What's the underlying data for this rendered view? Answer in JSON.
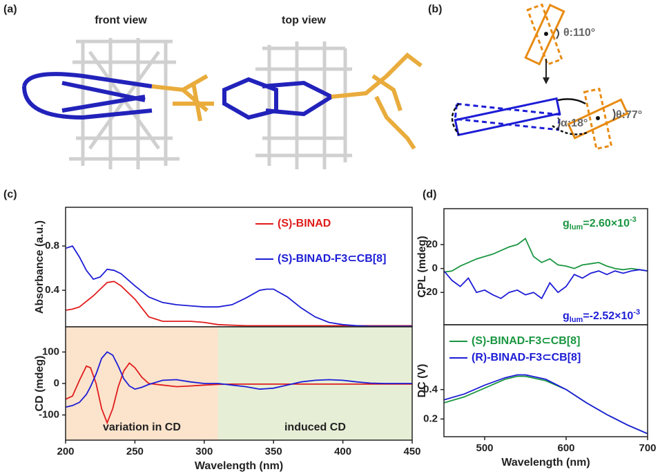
{
  "figure": {
    "panels": [
      {
        "label": "(a)",
        "texts": [
          "front view",
          "top view"
        ]
      },
      {
        "label": "(b)",
        "texts": [
          "θ:110°",
          "α:18°",
          "θ:77°"
        ]
      }
    ]
  },
  "chart_data": [
    {
      "type": "line",
      "panel_label": "(c)",
      "ylabel": "Absorbance (a.u.)",
      "x": [
        200,
        205,
        210,
        215,
        220,
        225,
        230,
        235,
        240,
        250,
        260,
        270,
        280,
        290,
        300,
        310,
        320,
        330,
        340,
        345,
        350,
        360,
        370,
        380,
        390,
        400,
        410,
        420,
        430,
        440,
        450
      ],
      "xlim": [
        200,
        450
      ],
      "ylim": [
        0.07,
        1.15
      ],
      "yticks": [
        0.4,
        0.8
      ],
      "legend": "upper right",
      "series": [
        {
          "name": "(S)-BINAD",
          "color": "#e01b1b",
          "values": [
            0.22,
            0.23,
            0.25,
            0.3,
            0.35,
            0.41,
            0.47,
            0.48,
            0.44,
            0.32,
            0.16,
            0.12,
            0.12,
            0.12,
            0.11,
            0.09,
            0.085,
            0.08,
            0.08,
            0.08,
            0.08,
            0.08,
            0.08,
            0.08,
            0.08,
            0.08,
            0.08,
            0.08,
            0.08,
            0.08,
            0.08
          ]
        },
        {
          "name": "(S)-BINAD-F3⊂CB[8]",
          "color": "#1c1cd6",
          "values": [
            0.78,
            0.8,
            0.7,
            0.58,
            0.5,
            0.52,
            0.59,
            0.58,
            0.55,
            0.44,
            0.34,
            0.29,
            0.27,
            0.26,
            0.25,
            0.25,
            0.27,
            0.33,
            0.4,
            0.41,
            0.41,
            0.34,
            0.24,
            0.16,
            0.11,
            0.09,
            0.08,
            0.075,
            0.075,
            0.075,
            0.075
          ]
        }
      ]
    },
    {
      "type": "line",
      "ylabel": "CD (mdeg)",
      "xlabel": "Wavelength (nm)",
      "x": [
        200,
        205,
        210,
        215,
        218,
        222,
        226,
        230,
        234,
        238,
        242,
        246,
        250,
        255,
        260,
        270,
        280,
        290,
        300,
        310,
        320,
        330,
        340,
        350,
        360,
        370,
        380,
        390,
        400,
        410,
        420,
        430,
        440,
        450
      ],
      "xlim": [
        200,
        450
      ],
      "ylim": [
        -180,
        180
      ],
      "xticks": [
        200,
        250,
        300,
        350,
        400,
        450
      ],
      "yticks": [
        -100,
        0,
        100
      ],
      "shaded_regions": [
        {
          "xlim": [
            200,
            310
          ],
          "color": "#fbe3cc",
          "label": "variation in CD"
        },
        {
          "xlim": [
            310,
            450
          ],
          "color": "#e6efd6",
          "label": "induced CD"
        }
      ],
      "series": [
        {
          "name": "(S)-BINAD",
          "color": "#e01b1b",
          "values": [
            -50,
            -40,
            10,
            55,
            50,
            0,
            -80,
            -125,
            -80,
            -10,
            40,
            65,
            50,
            20,
            0,
            -5,
            -10,
            -8,
            -5,
            -3,
            -2,
            -2,
            -2,
            -2,
            -2,
            -2,
            -2,
            -2,
            -2,
            -2,
            -2,
            -2,
            -2,
            -2
          ]
        },
        {
          "name": "(S)-BINAD-F3⊂CB[8]",
          "color": "#1c1cd6",
          "values": [
            -75,
            -70,
            -60,
            -35,
            -10,
            30,
            80,
            100,
            90,
            55,
            15,
            -8,
            -18,
            -12,
            -3,
            10,
            12,
            5,
            0,
            0,
            -5,
            -10,
            -18,
            -15,
            -5,
            5,
            10,
            12,
            10,
            5,
            1,
            0,
            0,
            0
          ]
        }
      ]
    },
    {
      "type": "line",
      "panel_label": "(d)",
      "ylabel": "CPL (mdeg)",
      "x": [
        450,
        460,
        470,
        480,
        490,
        500,
        510,
        520,
        530,
        540,
        550,
        560,
        570,
        580,
        590,
        600,
        610,
        620,
        630,
        640,
        650,
        660,
        670,
        680,
        690,
        700
      ],
      "xlim": [
        450,
        700
      ],
      "ylim": [
        -47,
        50
      ],
      "yticks": [
        -20,
        0,
        20
      ],
      "annotations": [
        {
          "symbol": "g",
          "subscript": "lum",
          "text": "=2.60×10",
          "superscript": "-3",
          "color": "#1a9641"
        },
        {
          "symbol": "g",
          "subscript": "lum",
          "text": "=-2.52×10",
          "superscript": "-3",
          "color": "#1c1cd6"
        }
      ],
      "series": [
        {
          "name": "(S)-BINAD-F3⊂CB[8]",
          "color": "#1a9641",
          "values": [
            -3,
            -2,
            2,
            5,
            8,
            10,
            12,
            15,
            18,
            20,
            25,
            10,
            5,
            8,
            3,
            2,
            0,
            3,
            4,
            5,
            2,
            0,
            -1,
            0,
            -1,
            -2
          ]
        },
        {
          "name": "(R)-BINAD-F3⊂CB[8]",
          "color": "#1c1cd6",
          "values": [
            -2,
            -10,
            -15,
            -8,
            -20,
            -18,
            -22,
            -25,
            -20,
            -18,
            -22,
            -20,
            -25,
            -12,
            -20,
            -15,
            -5,
            -8,
            -4,
            -2,
            -5,
            -2,
            -4,
            -2,
            -1,
            -2
          ]
        }
      ]
    },
    {
      "type": "line",
      "ylabel": "DC (V)",
      "xlabel": "Wavelength (nm)",
      "x": [
        450,
        475,
        500,
        525,
        540,
        550,
        575,
        600,
        625,
        650,
        675,
        700
      ],
      "xlim": [
        450,
        700
      ],
      "ylim": [
        0.08,
        0.84
      ],
      "xticks": [
        500,
        600,
        700
      ],
      "yticks": [
        0.2,
        0.4
      ],
      "legend": "upper left",
      "series": [
        {
          "name": "(S)-BINAD-F3⊂CB[8]",
          "color": "#1a9641",
          "values": [
            0.31,
            0.35,
            0.41,
            0.47,
            0.49,
            0.49,
            0.46,
            0.4,
            0.31,
            0.23,
            0.16,
            0.1
          ]
        },
        {
          "name": "(R)-BINAD-F3⊂CB[8]",
          "color": "#1c1cd6",
          "values": [
            0.33,
            0.37,
            0.43,
            0.48,
            0.5,
            0.5,
            0.47,
            0.4,
            0.31,
            0.23,
            0.16,
            0.1
          ]
        }
      ]
    }
  ]
}
